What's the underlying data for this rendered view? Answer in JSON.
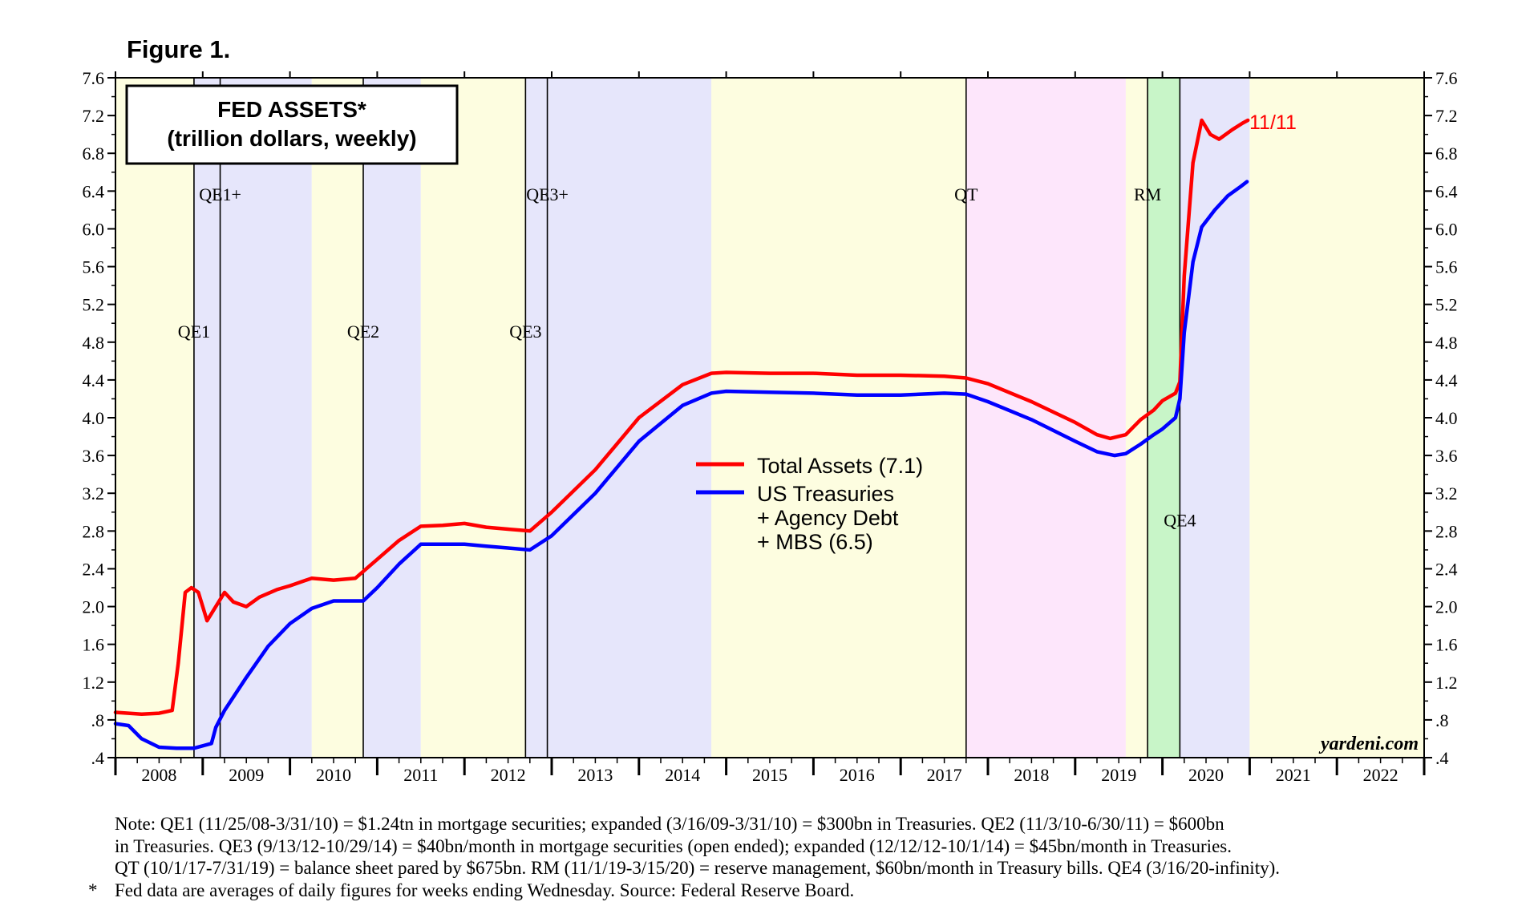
{
  "figure_label": "Figure 1.",
  "chart_data": {
    "type": "line",
    "title": "FED ASSETS*",
    "subtitle": "(trillion dollars, weekly)",
    "xlabel": "",
    "ylabel": "",
    "xlim": [
      2008.0,
      2023.0
    ],
    "ylim": [
      0.4,
      7.6
    ],
    "y_ticks": [
      0.4,
      0.8,
      1.2,
      1.6,
      2.0,
      2.4,
      2.8,
      3.2,
      3.6,
      4.0,
      4.4,
      4.8,
      5.2,
      5.6,
      6.0,
      6.4,
      6.8,
      7.2,
      7.6
    ],
    "y_tick_labels": [
      ".4",
      ".8",
      "1.2",
      "1.6",
      "2.0",
      "2.4",
      "2.8",
      "3.2",
      "3.6",
      "4.0",
      "4.4",
      "4.8",
      "5.2",
      "5.6",
      "6.0",
      "6.4",
      "6.8",
      "7.2",
      "7.6"
    ],
    "x_tick_labels": [
      "2008",
      "2009",
      "2010",
      "2011",
      "2012",
      "2013",
      "2014",
      "2015",
      "2016",
      "2017",
      "2018",
      "2019",
      "2020",
      "2021",
      "2022"
    ],
    "grid": false,
    "legend_position": "center",
    "shaded_periods": [
      {
        "start": 2008.0,
        "end": 2008.9,
        "color": "#fdfde0"
      },
      {
        "start": 2008.9,
        "end": 2010.25,
        "color": "#e6e6fb"
      },
      {
        "start": 2010.25,
        "end": 2010.84,
        "color": "#fdfde0"
      },
      {
        "start": 2010.84,
        "end": 2011.5,
        "color": "#e6e6fb"
      },
      {
        "start": 2011.5,
        "end": 2012.7,
        "color": "#fdfde0"
      },
      {
        "start": 2012.7,
        "end": 2014.83,
        "color": "#e6e6fb"
      },
      {
        "start": 2014.83,
        "end": 2017.75,
        "color": "#fdfde0"
      },
      {
        "start": 2017.75,
        "end": 2019.58,
        "color": "#fde6fb"
      },
      {
        "start": 2019.58,
        "end": 2019.83,
        "color": "#fdfde0"
      },
      {
        "start": 2019.83,
        "end": 2020.2,
        "color": "#c8f5c8"
      },
      {
        "start": 2020.2,
        "end": 2021.0,
        "color": "#e6e6fb"
      },
      {
        "start": 2021.0,
        "end": 2023.0,
        "color": "#fdfde0"
      }
    ],
    "event_lines": [
      {
        "x": 2008.9,
        "label": "QE1",
        "label_y": 4.85
      },
      {
        "x": 2009.2,
        "label": "QE1+",
        "label_y": 6.3
      },
      {
        "x": 2010.84,
        "label": "QE2",
        "label_y": 4.85
      },
      {
        "x": 2012.7,
        "label": "QE3",
        "label_y": 4.85
      },
      {
        "x": 2012.95,
        "label": "QE3+",
        "label_y": 6.3
      },
      {
        "x": 2017.75,
        "label": "QT",
        "label_y": 6.3
      },
      {
        "x": 2019.83,
        "label": "RM",
        "label_y": 6.3
      },
      {
        "x": 2020.2,
        "label": "QE4",
        "label_y": 2.85
      }
    ],
    "series": [
      {
        "name": "Total Assets (7.1)",
        "color": "#ff0000",
        "points": [
          [
            2008.0,
            0.88
          ],
          [
            2008.3,
            0.86
          ],
          [
            2008.5,
            0.87
          ],
          [
            2008.65,
            0.9
          ],
          [
            2008.72,
            1.4
          ],
          [
            2008.8,
            2.15
          ],
          [
            2008.87,
            2.2
          ],
          [
            2008.95,
            2.15
          ],
          [
            2009.05,
            1.85
          ],
          [
            2009.15,
            2.0
          ],
          [
            2009.25,
            2.15
          ],
          [
            2009.35,
            2.05
          ],
          [
            2009.5,
            2.0
          ],
          [
            2009.65,
            2.1
          ],
          [
            2009.85,
            2.18
          ],
          [
            2010.0,
            2.22
          ],
          [
            2010.25,
            2.3
          ],
          [
            2010.5,
            2.28
          ],
          [
            2010.75,
            2.3
          ],
          [
            2011.0,
            2.5
          ],
          [
            2011.25,
            2.7
          ],
          [
            2011.5,
            2.85
          ],
          [
            2011.75,
            2.86
          ],
          [
            2012.0,
            2.88
          ],
          [
            2012.25,
            2.84
          ],
          [
            2012.5,
            2.82
          ],
          [
            2012.75,
            2.8
          ],
          [
            2013.0,
            3.0
          ],
          [
            2013.5,
            3.45
          ],
          [
            2014.0,
            4.0
          ],
          [
            2014.5,
            4.35
          ],
          [
            2014.83,
            4.47
          ],
          [
            2015.0,
            4.48
          ],
          [
            2015.5,
            4.47
          ],
          [
            2016.0,
            4.47
          ],
          [
            2016.5,
            4.45
          ],
          [
            2017.0,
            4.45
          ],
          [
            2017.5,
            4.44
          ],
          [
            2017.75,
            4.42
          ],
          [
            2018.0,
            4.36
          ],
          [
            2018.5,
            4.17
          ],
          [
            2019.0,
            3.95
          ],
          [
            2019.25,
            3.82
          ],
          [
            2019.4,
            3.78
          ],
          [
            2019.58,
            3.82
          ],
          [
            2019.75,
            3.98
          ],
          [
            2019.9,
            4.08
          ],
          [
            2020.0,
            4.18
          ],
          [
            2020.15,
            4.26
          ],
          [
            2020.2,
            4.38
          ],
          [
            2020.25,
            5.5
          ],
          [
            2020.35,
            6.7
          ],
          [
            2020.45,
            7.15
          ],
          [
            2020.55,
            7.0
          ],
          [
            2020.65,
            6.95
          ],
          [
            2020.8,
            7.05
          ],
          [
            2020.92,
            7.12
          ],
          [
            2020.98,
            7.15
          ]
        ]
      },
      {
        "name": "US Treasuries + Agency Debt + MBS (6.5)",
        "color": "#0000ff",
        "points": [
          [
            2008.0,
            0.76
          ],
          [
            2008.15,
            0.74
          ],
          [
            2008.3,
            0.6
          ],
          [
            2008.5,
            0.51
          ],
          [
            2008.7,
            0.5
          ],
          [
            2008.9,
            0.5
          ],
          [
            2009.1,
            0.55
          ],
          [
            2009.15,
            0.72
          ],
          [
            2009.25,
            0.9
          ],
          [
            2009.5,
            1.25
          ],
          [
            2009.75,
            1.58
          ],
          [
            2010.0,
            1.82
          ],
          [
            2010.25,
            1.98
          ],
          [
            2010.5,
            2.06
          ],
          [
            2010.84,
            2.06
          ],
          [
            2011.0,
            2.2
          ],
          [
            2011.25,
            2.45
          ],
          [
            2011.5,
            2.66
          ],
          [
            2011.75,
            2.66
          ],
          [
            2012.0,
            2.66
          ],
          [
            2012.25,
            2.64
          ],
          [
            2012.5,
            2.62
          ],
          [
            2012.75,
            2.6
          ],
          [
            2013.0,
            2.75
          ],
          [
            2013.5,
            3.2
          ],
          [
            2014.0,
            3.75
          ],
          [
            2014.5,
            4.13
          ],
          [
            2014.83,
            4.26
          ],
          [
            2015.0,
            4.28
          ],
          [
            2015.5,
            4.27
          ],
          [
            2016.0,
            4.26
          ],
          [
            2016.5,
            4.24
          ],
          [
            2017.0,
            4.24
          ],
          [
            2017.5,
            4.26
          ],
          [
            2017.75,
            4.25
          ],
          [
            2018.0,
            4.17
          ],
          [
            2018.5,
            3.98
          ],
          [
            2019.0,
            3.75
          ],
          [
            2019.25,
            3.64
          ],
          [
            2019.45,
            3.6
          ],
          [
            2019.58,
            3.62
          ],
          [
            2019.75,
            3.72
          ],
          [
            2019.9,
            3.82
          ],
          [
            2020.0,
            3.88
          ],
          [
            2020.15,
            4.0
          ],
          [
            2020.2,
            4.2
          ],
          [
            2020.25,
            4.9
          ],
          [
            2020.35,
            5.65
          ],
          [
            2020.45,
            6.02
          ],
          [
            2020.6,
            6.2
          ],
          [
            2020.75,
            6.35
          ],
          [
            2020.9,
            6.45
          ],
          [
            2020.97,
            6.5
          ]
        ]
      }
    ],
    "legend": [
      "Total Assets (7.1)",
      "US Treasuries",
      "+ Agency Debt",
      "+ MBS (6.5)"
    ],
    "annotations": [
      {
        "text": "11/11",
        "color": "#ff0000"
      },
      {
        "text": "yardeni.com",
        "color": "#000000"
      }
    ]
  },
  "notes": [
    "Note: QE1 (11/25/08-3/31/10) = $1.24tn in mortgage securities; expanded (3/16/09-3/31/10) = $300bn in Treasuries. QE2 (11/3/10-6/30/11) = $600bn",
    "in Treasuries. QE3 (9/13/12-10/29/14) = $40bn/month in mortgage securities (open ended); expanded (12/12/12-10/1/14) = $45bn/month in Treasuries.",
    "QT (10/1/17-7/31/19) = balance sheet pared by $675bn. RM (11/1/19-3/15/20) = reserve management, $60bn/month in Treasury bills. QE4 (3/16/20-infinity).",
    "Fed data are averages of daily figures for weeks ending Wednesday. Source: Federal Reserve Board."
  ],
  "footnote_marker": "*"
}
